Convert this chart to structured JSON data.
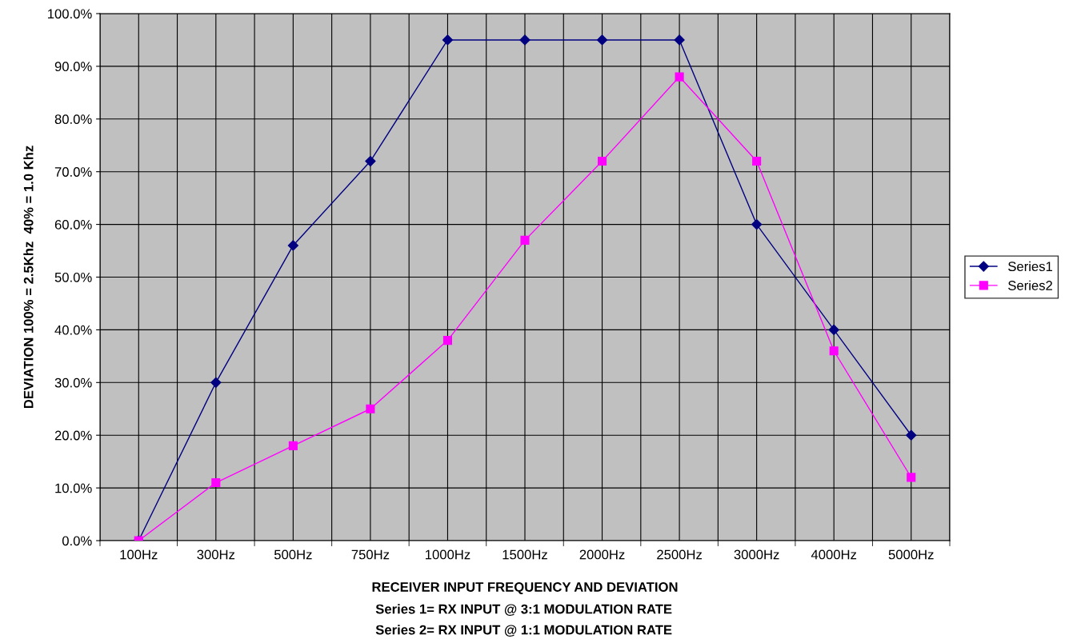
{
  "chart_data": {
    "type": "line",
    "xlabel": "RECEIVER INPUT FREQUENCY AND DEVIATION",
    "ylabel": "DEVIATION 100% = 2.5Khz  40% = 1.0 Khz",
    "annotations": [
      "Series 1= RX INPUT @ 3:1 MODULATION RATE",
      "Series 2= RX INPUT @ 1:1 MODULATION RATE"
    ],
    "categories": [
      "100Hz",
      "300Hz",
      "500Hz",
      "750Hz",
      "1000Hz",
      "1500Hz",
      "2000Hz",
      "2500Hz",
      "3000Hz",
      "4000Hz",
      "5000Hz"
    ],
    "series": [
      {
        "name": "Series1",
        "color": "#000080",
        "marker": "diamond",
        "values": [
          0,
          30,
          56,
          72,
          95,
          95,
          95,
          95,
          60,
          40,
          20
        ]
      },
      {
        "name": "Series2",
        "color": "#ff00ff",
        "marker": "square",
        "values": [
          0,
          11,
          18,
          25,
          38,
          57,
          72,
          88,
          72,
          36,
          12
        ]
      }
    ],
    "ylim": [
      0,
      100
    ],
    "yticks": [
      {
        "value": 0,
        "label": "0.0%"
      },
      {
        "value": 10,
        "label": "10.0%"
      },
      {
        "value": 20,
        "label": "20.0%"
      },
      {
        "value": 30,
        "label": "30.0%"
      },
      {
        "value": 40,
        "label": "40.0%"
      },
      {
        "value": 50,
        "label": "50.0%"
      },
      {
        "value": 60,
        "label": "60.0%"
      },
      {
        "value": 70,
        "label": "70.0%"
      },
      {
        "value": 80,
        "label": "80.0%"
      },
      {
        "value": 90,
        "label": "90.0%"
      },
      {
        "value": 100,
        "label": "100.0%"
      }
    ],
    "grid": true,
    "legend": "right",
    "line_style": "solid"
  }
}
